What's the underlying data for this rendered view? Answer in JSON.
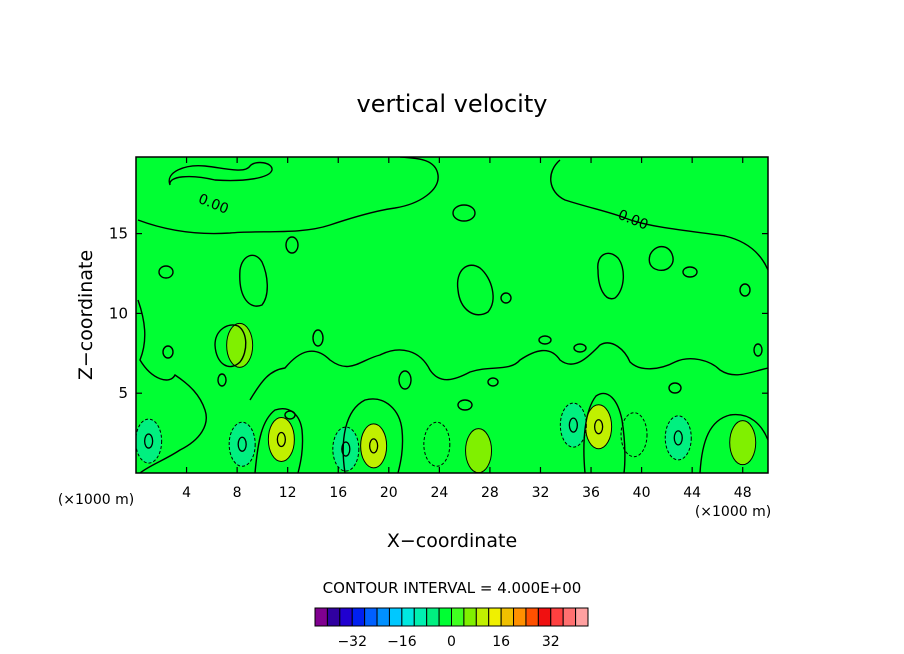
{
  "chart_data": {
    "type": "heatmap",
    "title": "vertical velocity",
    "xlabel": "X−coordinate",
    "ylabel": "Z−coordinate",
    "x_unit_left": "(×1000 m)",
    "x_unit_right": "(×1000 m)",
    "xlim": [
      0,
      50
    ],
    "ylim": [
      0,
      19.8
    ],
    "x_ticks": [
      "4",
      "8",
      "12",
      "16",
      "20",
      "24",
      "28",
      "32",
      "36",
      "40",
      "44",
      "48"
    ],
    "x_tick_values": [
      4,
      8,
      12,
      16,
      20,
      24,
      28,
      32,
      36,
      40,
      44,
      48
    ],
    "y_ticks": [
      "5",
      "10",
      "15"
    ],
    "y_tick_values": [
      5,
      10,
      15
    ],
    "contour_interval_label": "CONTOUR INTERVAL = 4.000E+00",
    "contour_interval": 4,
    "contour_labels": [
      {
        "text": "0.00",
        "x": 6.0,
        "y": 16.6
      },
      {
        "text": "0.00",
        "x": 39.2,
        "y": 15.6
      }
    ],
    "background_level": 0,
    "background_color": "#00ff33",
    "features": [
      {
        "x": 11.5,
        "y": 2.1,
        "value": 8,
        "label": "updraft"
      },
      {
        "x": 18.8,
        "y": 1.7,
        "value": 8,
        "label": "updraft"
      },
      {
        "x": 27.1,
        "y": 1.4,
        "value": 4,
        "label": "updraft"
      },
      {
        "x": 36.6,
        "y": 2.9,
        "value": 8,
        "label": "updraft"
      },
      {
        "x": 48.0,
        "y": 1.9,
        "value": 4,
        "label": "updraft"
      },
      {
        "x": 8.2,
        "y": 8.0,
        "value": 4,
        "label": "updraft"
      },
      {
        "x": 1.0,
        "y": 2.0,
        "value": -8,
        "label": "downdraft"
      },
      {
        "x": 8.4,
        "y": 1.8,
        "value": -8,
        "label": "downdraft"
      },
      {
        "x": 16.6,
        "y": 1.5,
        "value": -8,
        "label": "downdraft"
      },
      {
        "x": 23.8,
        "y": 1.8,
        "value": -4,
        "label": "downdraft"
      },
      {
        "x": 34.6,
        "y": 3.0,
        "value": -8,
        "label": "downdraft"
      },
      {
        "x": 39.4,
        "y": 2.4,
        "value": -4,
        "label": "downdraft"
      },
      {
        "x": 42.9,
        "y": 2.2,
        "value": -8,
        "label": "downdraft"
      }
    ],
    "colorbar": {
      "colors": [
        "#800090",
        "#3000a0",
        "#2000d0",
        "#0020f0",
        "#0060ff",
        "#0090ff",
        "#00c8ff",
        "#00e8e0",
        "#00f0b0",
        "#00f080",
        "#00ff33",
        "#40ff20",
        "#80f000",
        "#c0f000",
        "#f0f000",
        "#f0c000",
        "#ff9000",
        "#ff5000",
        "#f01010",
        "#ff4040",
        "#ff7070",
        "#ffa0a0"
      ],
      "tick_labels": [
        "−32",
        "−16",
        "0",
        "16",
        "32"
      ],
      "tick_values": [
        -32,
        -16,
        0,
        16,
        32
      ],
      "min": -44,
      "max": 44
    }
  }
}
